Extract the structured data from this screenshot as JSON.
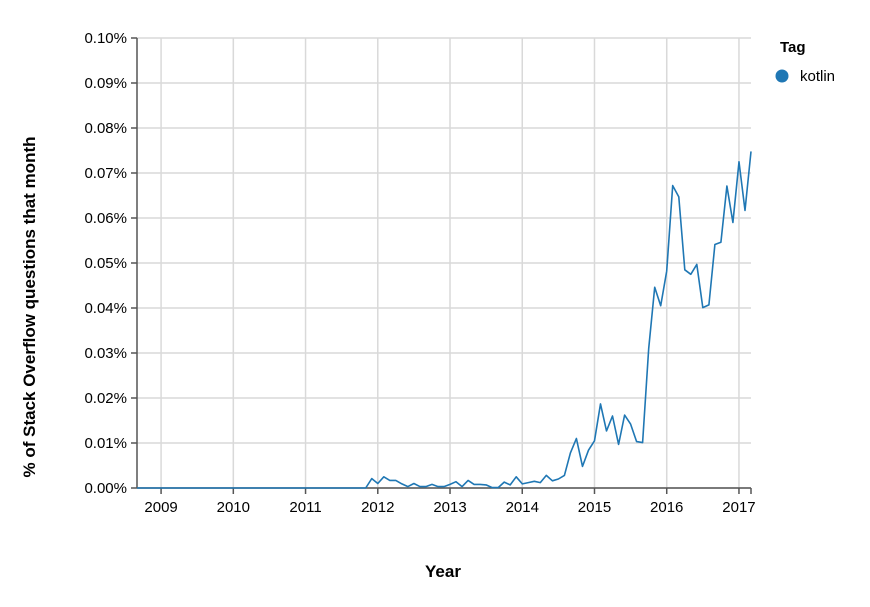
{
  "chart_data": {
    "type": "line",
    "xlabel": "Year",
    "ylabel": "% of Stack Overflow questions that month",
    "x_ticks": [
      "2009",
      "2010",
      "2011",
      "2012",
      "2013",
      "2014",
      "2015",
      "2016",
      "2017"
    ],
    "y_ticks": [
      "0.00%",
      "0.01%",
      "0.02%",
      "0.03%",
      "0.04%",
      "0.05%",
      "0.06%",
      "0.07%",
      "0.08%",
      "0.09%",
      "0.10%"
    ],
    "ylim": [
      0,
      0.1
    ],
    "xlim": [
      "2008-09",
      "2017-03"
    ],
    "grid": true,
    "legend": {
      "title": "Tag",
      "position": "top-right",
      "entries": [
        {
          "name": "kotlin",
          "color": "#1f77b4"
        }
      ]
    },
    "series": [
      {
        "name": "kotlin",
        "color": "#1f77b4",
        "x": [
          "2008-09",
          "2011-11",
          "2011-12",
          "2012-01",
          "2012-02",
          "2012-03",
          "2012-04",
          "2012-05",
          "2012-06",
          "2012-07",
          "2012-08",
          "2012-09",
          "2012-10",
          "2012-11",
          "2012-12",
          "2013-01",
          "2013-02",
          "2013-03",
          "2013-04",
          "2013-05",
          "2013-06",
          "2013-07",
          "2013-08",
          "2013-09",
          "2013-10",
          "2013-11",
          "2013-12",
          "2014-01",
          "2014-02",
          "2014-03",
          "2014-04",
          "2014-05",
          "2014-06",
          "2014-07",
          "2014-08",
          "2014-09",
          "2014-10",
          "2014-11",
          "2014-12",
          "2015-01",
          "2015-02",
          "2015-03",
          "2015-04",
          "2015-05",
          "2015-06",
          "2015-07",
          "2015-08",
          "2015-09",
          "2015-10",
          "2015-11",
          "2015-12",
          "2016-01",
          "2016-02",
          "2016-03",
          "2016-04",
          "2016-05",
          "2016-06",
          "2016-07",
          "2016-08",
          "2016-09",
          "2016-10",
          "2016-11",
          "2016-12",
          "2017-01",
          "2017-02",
          "2017-03"
        ],
        "values": [
          0.0,
          0.0,
          0.0021,
          0.001,
          0.0025,
          0.0017,
          0.0017,
          0.0009,
          0.0003,
          0.001,
          0.0003,
          0.0003,
          0.0008,
          0.0003,
          0.0003,
          0.0008,
          0.0014,
          0.0003,
          0.0017,
          0.0008,
          0.0008,
          0.0007,
          0.0001,
          0.0001,
          0.0013,
          0.0007,
          0.0025,
          0.0009,
          0.0012,
          0.0015,
          0.0012,
          0.0028,
          0.0016,
          0.002,
          0.0028,
          0.0078,
          0.011,
          0.0048,
          0.0084,
          0.0105,
          0.0187,
          0.0127,
          0.016,
          0.0097,
          0.0162,
          0.0142,
          0.0103,
          0.0101,
          0.031,
          0.0446,
          0.0405,
          0.0482,
          0.0672,
          0.0647,
          0.0485,
          0.0475,
          0.0497,
          0.0401,
          0.0407,
          0.0541,
          0.0546,
          0.0671,
          0.059,
          0.0725,
          0.0617,
          0.0748
        ]
      }
    ]
  }
}
